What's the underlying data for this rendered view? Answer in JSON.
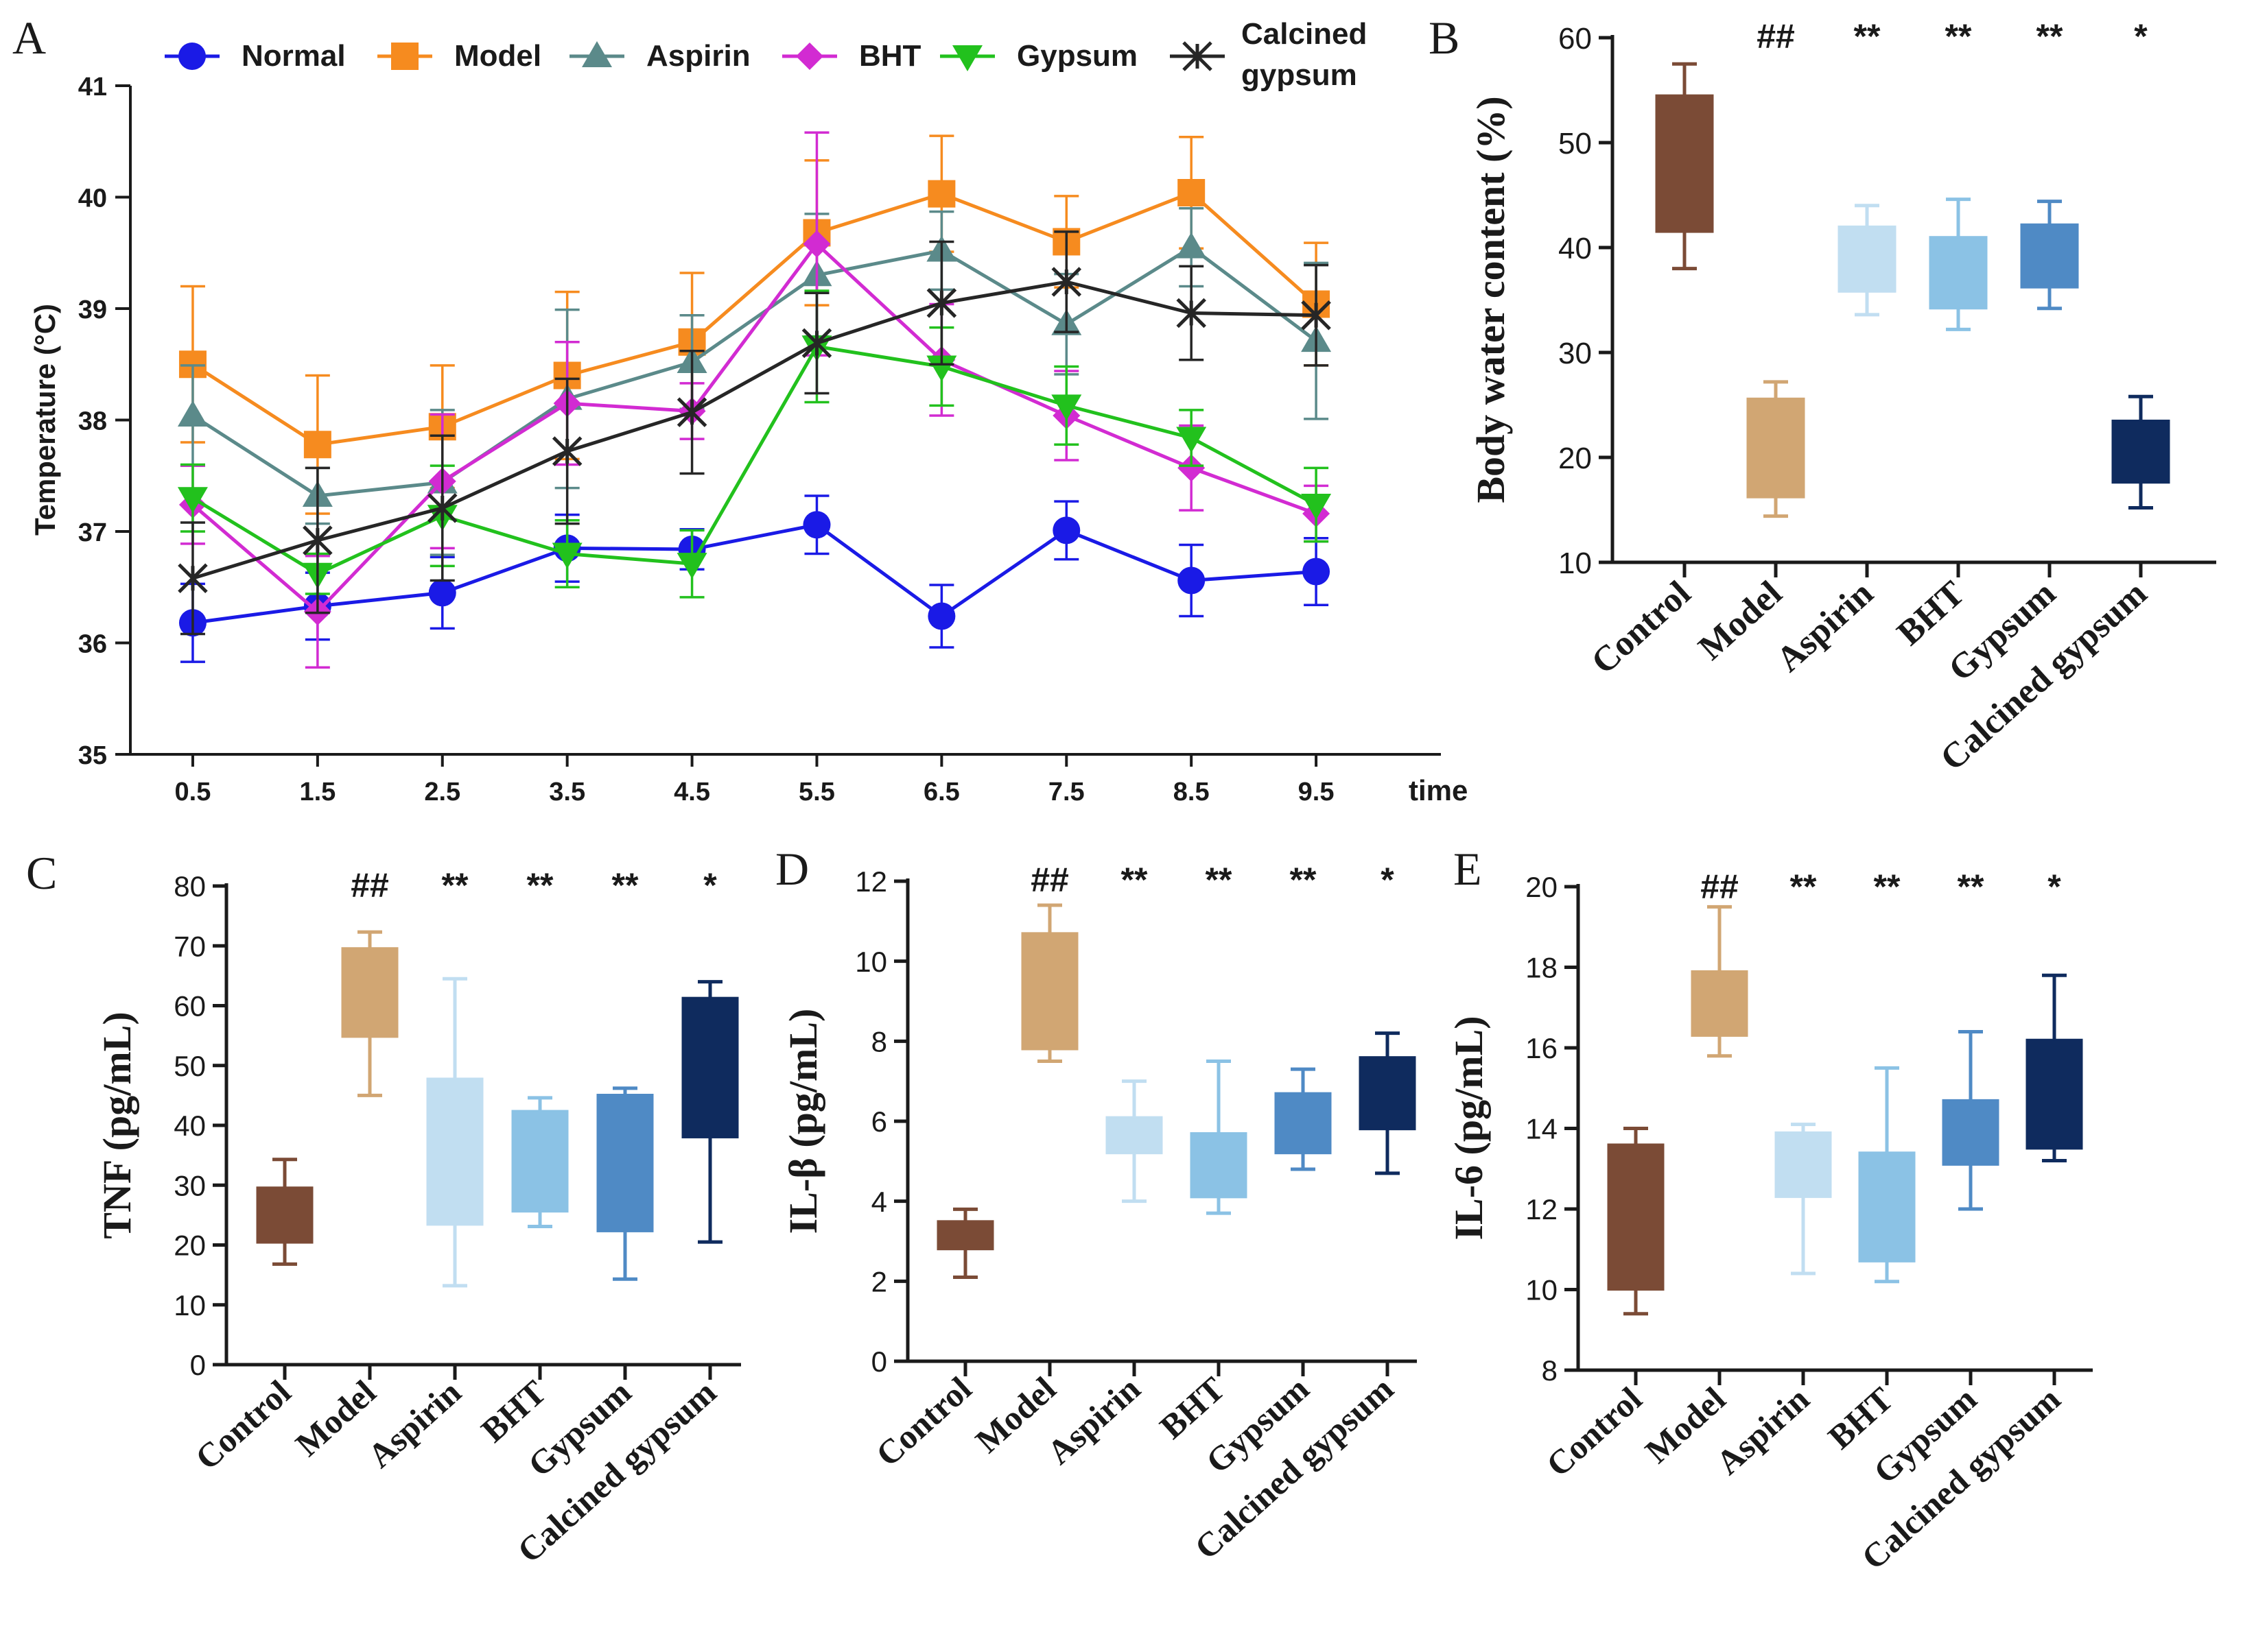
{
  "chart_data": [
    {
      "panel": "A",
      "type": "line",
      "ylabel": "Temperature (°C)",
      "xlabel": "time",
      "ylim": [
        35,
        41
      ],
      "yticks": [
        35,
        36,
        37,
        38,
        39,
        40,
        41
      ],
      "x": [
        0.5,
        1.5,
        2.5,
        3.5,
        4.5,
        5.5,
        6.5,
        7.5,
        8.5,
        9.5
      ],
      "x_tick_labels": [
        "0.5",
        "1.5",
        "2.5",
        "3.5",
        "4.5",
        "5.5",
        "6.5",
        "7.5",
        "8.5",
        "9.5"
      ],
      "series": [
        {
          "name": "Normal",
          "color": "#1a1ae6",
          "marker": "circle",
          "values": [
            36.18,
            36.33,
            36.45,
            36.85,
            36.84,
            37.06,
            36.24,
            37.01,
            36.56,
            36.64
          ],
          "errors": [
            0.35,
            0.3,
            0.32,
            0.3,
            0.18,
            0.26,
            0.28,
            0.26,
            0.32,
            0.3
          ]
        },
        {
          "name": "Model",
          "color": "#f68b1f",
          "marker": "square",
          "values": [
            38.5,
            37.78,
            37.94,
            38.4,
            38.7,
            39.68,
            40.03,
            39.6,
            40.04,
            39.04
          ],
          "errors": [
            0.7,
            0.62,
            0.55,
            0.75,
            0.62,
            0.65,
            0.52,
            0.41,
            0.5,
            0.55
          ]
        },
        {
          "name": "Aspirin",
          "color": "#5b8a8a",
          "marker": "triangle-up",
          "values": [
            38.04,
            37.32,
            37.44,
            38.19,
            38.52,
            39.3,
            39.52,
            38.86,
            39.55,
            38.71
          ],
          "errors": [
            0.45,
            0.25,
            0.65,
            0.8,
            0.42,
            0.55,
            0.35,
            0.45,
            0.35,
            0.7
          ]
        },
        {
          "name": "BHT",
          "color": "#d22bd2",
          "marker": "diamond",
          "values": [
            37.24,
            36.28,
            37.45,
            38.15,
            38.08,
            39.58,
            38.54,
            38.04,
            37.57,
            37.16
          ],
          "errors": [
            0.35,
            0.5,
            0.6,
            0.55,
            0.25,
            1.0,
            0.5,
            0.4,
            0.38,
            0.25
          ]
        },
        {
          "name": "Gypsum",
          "color": "#22c11d",
          "marker": "triangle-down",
          "values": [
            37.3,
            36.62,
            37.14,
            36.8,
            36.71,
            38.66,
            38.48,
            38.13,
            37.84,
            37.24
          ],
          "errors": [
            0.3,
            0.18,
            0.45,
            0.3,
            0.3,
            0.5,
            0.35,
            0.35,
            0.25,
            0.33
          ]
        },
        {
          "name": "Calcined gypsum",
          "color": "#262626",
          "marker": "star",
          "values": [
            36.58,
            36.92,
            37.21,
            37.72,
            38.07,
            38.69,
            39.05,
            39.24,
            38.96,
            38.94
          ],
          "errors": [
            0.5,
            0.65,
            0.65,
            0.65,
            0.55,
            0.45,
            0.55,
            0.45,
            0.42,
            0.45
          ]
        }
      ],
      "legend_labels": [
        "Normal",
        "Model",
        "Aspirin",
        "BHT",
        "Gypsum",
        "Calcined",
        "gypsum"
      ]
    },
    {
      "panel": "B",
      "type": "box",
      "ylabel": "Body water content (%)",
      "ylim": [
        10,
        60
      ],
      "yticks": [
        10,
        20,
        30,
        40,
        50,
        60
      ],
      "categories": [
        "Control",
        "Model",
        "Aspirin",
        "BHT",
        "Gypsum",
        "Calcined gypsum"
      ],
      "significance": [
        "",
        "##",
        "**",
        "**",
        "**",
        "*"
      ],
      "boxes": [
        {
          "min": 38.0,
          "q1": 41.5,
          "q3": 54.5,
          "max": 57.5,
          "color": "#7b4b36"
        },
        {
          "min": 14.4,
          "q1": 16.2,
          "q3": 25.6,
          "max": 27.2,
          "color": "#d1a673"
        },
        {
          "min": 33.6,
          "q1": 35.8,
          "q3": 42.0,
          "max": 44.0,
          "color": "#c1def1"
        },
        {
          "min": 32.2,
          "q1": 34.2,
          "q3": 41.0,
          "max": 44.6,
          "color": "#8bc2e5"
        },
        {
          "min": 34.2,
          "q1": 36.2,
          "q3": 42.2,
          "max": 44.4,
          "color": "#4f8ac5"
        },
        {
          "min": 15.2,
          "q1": 17.6,
          "q3": 23.5,
          "max": 25.8,
          "color": "#0f2b5e"
        }
      ]
    },
    {
      "panel": "C",
      "type": "box",
      "ylabel": "TNF (pg/mL)",
      "ylim": [
        0,
        80
      ],
      "yticks": [
        0,
        10,
        20,
        30,
        40,
        50,
        60,
        70,
        80
      ],
      "categories": [
        "Control",
        "Model",
        "Aspirin",
        "BHT",
        "Gypsum",
        "Calcined gypsum"
      ],
      "significance": [
        "",
        "##",
        "**",
        "**",
        "**",
        "*"
      ],
      "boxes": [
        {
          "min": 16.8,
          "q1": 20.4,
          "q3": 29.6,
          "max": 34.3,
          "color": "#7b4b36"
        },
        {
          "min": 45.0,
          "q1": 54.8,
          "q3": 69.6,
          "max": 72.3,
          "color": "#d1a673"
        },
        {
          "min": 13.2,
          "q1": 23.4,
          "q3": 47.8,
          "max": 64.5,
          "color": "#c1def1"
        },
        {
          "min": 23.1,
          "q1": 25.6,
          "q3": 42.4,
          "max": 44.6,
          "color": "#8bc2e5"
        },
        {
          "min": 14.3,
          "q1": 22.3,
          "q3": 45.1,
          "max": 46.2,
          "color": "#4f8ac5"
        },
        {
          "min": 20.5,
          "q1": 38.0,
          "q3": 61.3,
          "max": 64.0,
          "color": "#0f2b5e"
        }
      ]
    },
    {
      "panel": "D",
      "type": "box",
      "ylabel": "IL-β (pg/mL)",
      "ylim": [
        0,
        12
      ],
      "yticks": [
        0,
        2,
        4,
        6,
        8,
        10,
        12
      ],
      "categories": [
        "Control",
        "Model",
        "Aspirin",
        "BHT",
        "Gypsum",
        "Calcined gypsum"
      ],
      "significance": [
        "",
        "##",
        "**",
        "**",
        "**",
        "*"
      ],
      "boxes": [
        {
          "min": 2.1,
          "q1": 2.8,
          "q3": 3.5,
          "max": 3.8,
          "color": "#7b4b36"
        },
        {
          "min": 7.5,
          "q1": 7.8,
          "q3": 10.7,
          "max": 11.4,
          "color": "#d1a673"
        },
        {
          "min": 4.0,
          "q1": 5.2,
          "q3": 6.1,
          "max": 7.0,
          "color": "#c1def1"
        },
        {
          "min": 3.7,
          "q1": 4.1,
          "q3": 5.7,
          "max": 7.5,
          "color": "#8bc2e5"
        },
        {
          "min": 4.8,
          "q1": 5.2,
          "q3": 6.7,
          "max": 7.3,
          "color": "#4f8ac5"
        },
        {
          "min": 4.7,
          "q1": 5.8,
          "q3": 7.6,
          "max": 8.2,
          "color": "#0f2b5e"
        }
      ]
    },
    {
      "panel": "E",
      "type": "box",
      "ylabel": "IL-6 (pg/mL)",
      "ylim": [
        8,
        20
      ],
      "yticks": [
        8,
        10,
        12,
        14,
        16,
        18,
        20
      ],
      "categories": [
        "Control",
        "Model",
        "Aspirin",
        "BHT",
        "Gypsum",
        "Calcined gypsum"
      ],
      "significance": [
        "",
        "##",
        "**",
        "**",
        "**",
        "*"
      ],
      "boxes": [
        {
          "min": 9.4,
          "q1": 10.0,
          "q3": 13.6,
          "max": 14.0,
          "color": "#7b4b36"
        },
        {
          "min": 15.8,
          "q1": 16.3,
          "q3": 17.9,
          "max": 19.5,
          "color": "#d1a673"
        },
        {
          "min": 10.4,
          "q1": 12.3,
          "q3": 13.9,
          "max": 14.1,
          "color": "#c1def1"
        },
        {
          "min": 10.2,
          "q1": 10.7,
          "q3": 13.4,
          "max": 15.5,
          "color": "#8bc2e5"
        },
        {
          "min": 12.0,
          "q1": 13.1,
          "q3": 14.7,
          "max": 16.4,
          "color": "#4f8ac5"
        },
        {
          "min": 13.2,
          "q1": 13.5,
          "q3": 16.2,
          "max": 17.8,
          "color": "#0f2b5e"
        }
      ]
    }
  ]
}
